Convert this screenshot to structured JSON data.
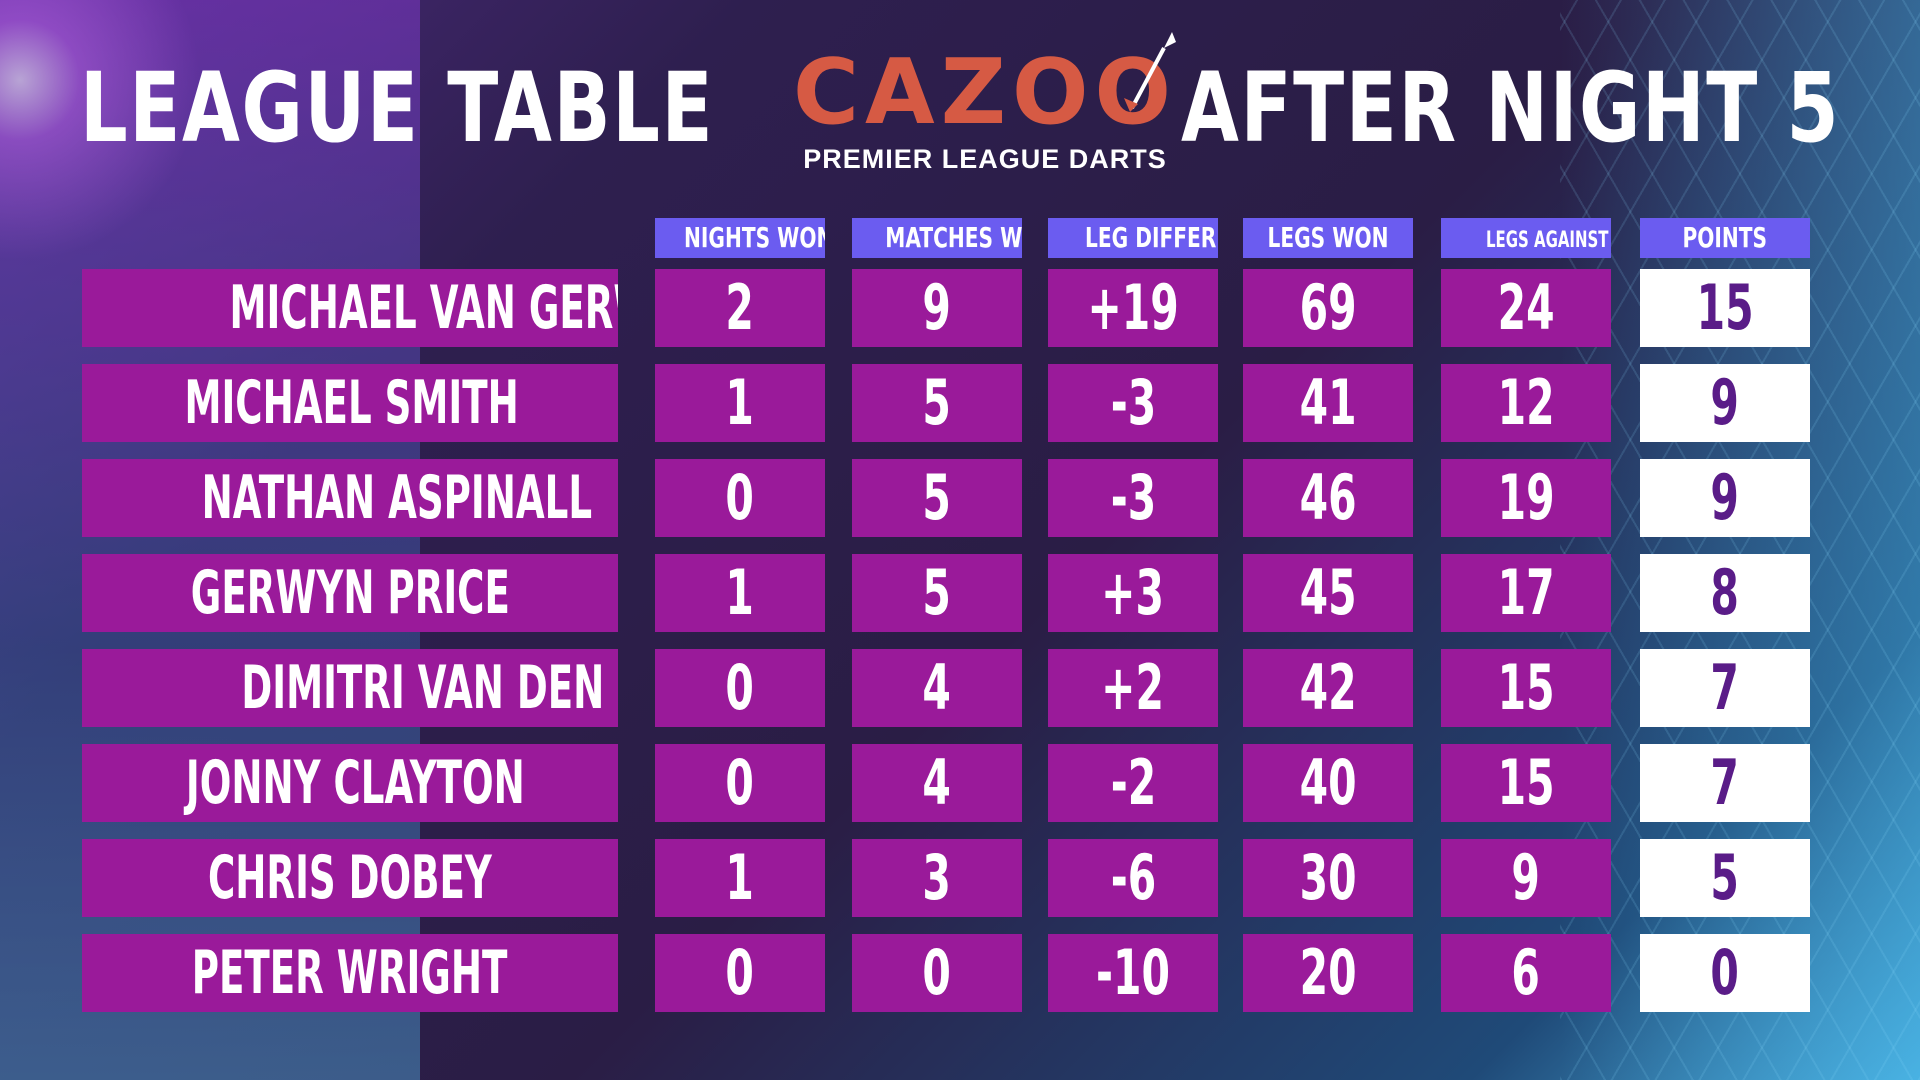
{
  "header": {
    "left_title": "LEAGUE TABLE",
    "right_title": "AFTER NIGHT 5",
    "logo_text": "CAZOO",
    "logo_subtitle": "PREMIER LEAGUE DARTS"
  },
  "colors": {
    "row_purple": "#9a1a9a",
    "header_blue": "#6b5cf0",
    "points_text": "#5a1c88",
    "logo_orange": "#d65a44"
  },
  "columns": [
    "NIGHTS WON",
    "MATCHES WON",
    "LEG DIFFERENCE",
    "LEGS WON",
    "LEGS AGAINST THROW",
    "POINTS"
  ],
  "rows": [
    {
      "player": "MICHAEL VAN GERWEN",
      "nights_won": "2",
      "matches_won": "9",
      "leg_difference": "+19",
      "legs_won": "69",
      "legs_against_throw": "24",
      "points": "15"
    },
    {
      "player": "MICHAEL SMITH",
      "nights_won": "1",
      "matches_won": "5",
      "leg_difference": "-3",
      "legs_won": "41",
      "legs_against_throw": "12",
      "points": "9"
    },
    {
      "player": "NATHAN ASPINALL",
      "nights_won": "0",
      "matches_won": "5",
      "leg_difference": "-3",
      "legs_won": "46",
      "legs_against_throw": "19",
      "points": "9"
    },
    {
      "player": "GERWYN PRICE",
      "nights_won": "1",
      "matches_won": "5",
      "leg_difference": "+3",
      "legs_won": "45",
      "legs_against_throw": "17",
      "points": "8"
    },
    {
      "player": "DIMITRI VAN DEN BERGH",
      "nights_won": "0",
      "matches_won": "4",
      "leg_difference": "+2",
      "legs_won": "42",
      "legs_against_throw": "15",
      "points": "7"
    },
    {
      "player": "JONNY CLAYTON",
      "nights_won": "0",
      "matches_won": "4",
      "leg_difference": "-2",
      "legs_won": "40",
      "legs_against_throw": "15",
      "points": "7"
    },
    {
      "player": "CHRIS DOBEY",
      "nights_won": "1",
      "matches_won": "3",
      "leg_difference": "-6",
      "legs_won": "30",
      "legs_against_throw": "9",
      "points": "5"
    },
    {
      "player": "PETER WRIGHT",
      "nights_won": "0",
      "matches_won": "0",
      "leg_difference": "-10",
      "legs_won": "20",
      "legs_against_throw": "6",
      "points": "0"
    }
  ]
}
